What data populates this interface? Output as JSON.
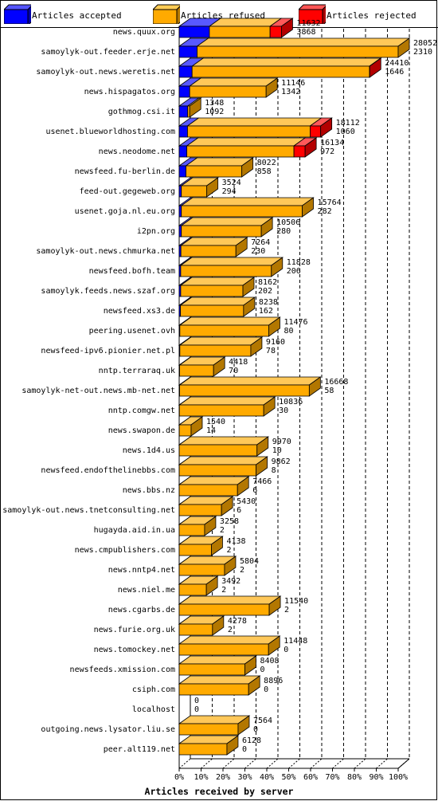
{
  "legend": [
    {
      "label": "Articles accepted",
      "color": "#0000ff"
    },
    {
      "label": "Articles refused",
      "color": "#ffaa00"
    },
    {
      "label": "Articles rejected",
      "color": "#ff0000"
    }
  ],
  "chart_data": {
    "type": "bar",
    "orientation": "horizontal",
    "stacked": true,
    "xlabel": "Articles received by server",
    "xlim": [
      0,
      100
    ],
    "x_unit": "percent",
    "x_ticks": [
      "0%",
      "10%",
      "20%",
      "30%",
      "40%",
      "50%",
      "60%",
      "70%",
      "80%",
      "90%",
      "100%"
    ],
    "grid": true,
    "colors": {
      "accepted": "#0000ff",
      "refused": "#ffaa00",
      "rejected": "#ff0000"
    },
    "rows": [
      {
        "server": "news.quux.org",
        "total": "11632",
        "accepted_label": "3868",
        "accepted_pct": 13.8,
        "refused_pct": 27.7,
        "rejected_pct": 5.2
      },
      {
        "server": "samoylyk-out.feeder.erje.net",
        "total": "28052",
        "accepted_label": "2310",
        "accepted_pct": 8.2,
        "refused_pct": 91.8,
        "rejected_pct": 0.0
      },
      {
        "server": "samoylyk-out.news.weretis.net",
        "total": "24410",
        "accepted_label": "1646",
        "accepted_pct": 5.9,
        "refused_pct": 81.0,
        "rejected_pct": 0.1
      },
      {
        "server": "news.hispagatos.org",
        "total": "11146",
        "accepted_label": "1342",
        "accepted_pct": 4.8,
        "refused_pct": 34.9,
        "rejected_pct": 0.0
      },
      {
        "server": "gothmog.csi.it",
        "total": "1348",
        "accepted_label": "1092",
        "accepted_pct": 3.9,
        "refused_pct": 0.9,
        "rejected_pct": 0.0
      },
      {
        "server": "usenet.blueworldhosting.com",
        "total": "18112",
        "accepted_label": "1060",
        "accepted_pct": 3.8,
        "refused_pct": 56.0,
        "rejected_pct": 4.8
      },
      {
        "server": "news.neodome.net",
        "total": "16134",
        "accepted_label": "972",
        "accepted_pct": 3.5,
        "refused_pct": 48.9,
        "rejected_pct": 5.1
      },
      {
        "server": "newsfeed.fu-berlin.de",
        "total": "8022",
        "accepted_label": "858",
        "accepted_pct": 3.1,
        "refused_pct": 25.5,
        "rejected_pct": 0.0
      },
      {
        "server": "feed-out.gegeweb.org",
        "total": "3524",
        "accepted_label": "294",
        "accepted_pct": 1.0,
        "refused_pct": 11.6,
        "rejected_pct": 0.0
      },
      {
        "server": "usenet.goja.nl.eu.org",
        "total": "15764",
        "accepted_label": "282",
        "accepted_pct": 1.0,
        "refused_pct": 55.2,
        "rejected_pct": 0.0
      },
      {
        "server": "i2pn.org",
        "total": "10506",
        "accepted_label": "280",
        "accepted_pct": 1.0,
        "refused_pct": 36.5,
        "rejected_pct": 0.0
      },
      {
        "server": "samoylyk-out.news.chmurka.net",
        "total": "7264",
        "accepted_label": "230",
        "accepted_pct": 0.8,
        "refused_pct": 25.1,
        "rejected_pct": 0.0
      },
      {
        "server": "newsfeed.bofh.team",
        "total": "11828",
        "accepted_label": "206",
        "accepted_pct": 0.7,
        "refused_pct": 41.4,
        "rejected_pct": 0.0
      },
      {
        "server": "samoylyk.feeds.news.szaf.org",
        "total": "8162",
        "accepted_label": "202",
        "accepted_pct": 0.7,
        "refused_pct": 28.4,
        "rejected_pct": 0.0
      },
      {
        "server": "newsfeed.xs3.de",
        "total": "8238",
        "accepted_label": "162",
        "accepted_pct": 0.6,
        "refused_pct": 28.8,
        "rejected_pct": 0.0
      },
      {
        "server": "peering.usenet.ovh",
        "total": "11476",
        "accepted_label": "80",
        "accepted_pct": 0.3,
        "refused_pct": 40.6,
        "rejected_pct": 0.0
      },
      {
        "server": "newsfeed-ipv6.pionier.net.pl",
        "total": "9160",
        "accepted_label": "78",
        "accepted_pct": 0.3,
        "refused_pct": 32.4,
        "rejected_pct": 0.0
      },
      {
        "server": "nntp.terraraq.uk",
        "total": "4418",
        "accepted_label": "70",
        "accepted_pct": 0.2,
        "refused_pct": 15.5,
        "rejected_pct": 0.0
      },
      {
        "server": "samoylyk-net-out.news.mb-net.net",
        "total": "16668",
        "accepted_label": "58",
        "accepted_pct": 0.2,
        "refused_pct": 59.2,
        "rejected_pct": 0.0
      },
      {
        "server": "nntp.comgw.net",
        "total": "10836",
        "accepted_label": "30",
        "accepted_pct": 0.1,
        "refused_pct": 38.5,
        "rejected_pct": 0.0
      },
      {
        "server": "news.swapon.de",
        "total": "1540",
        "accepted_label": "14",
        "accepted_pct": 0.05,
        "refused_pct": 5.4,
        "rejected_pct": 0.0
      },
      {
        "server": "news.1d4.us",
        "total": "9970",
        "accepted_label": "10",
        "accepted_pct": 0.04,
        "refused_pct": 35.5,
        "rejected_pct": 0.0
      },
      {
        "server": "newsfeed.endofthelinebbs.com",
        "total": "9862",
        "accepted_label": "8",
        "accepted_pct": 0.03,
        "refused_pct": 35.1,
        "rejected_pct": 0.0
      },
      {
        "server": "news.bbs.nz",
        "total": "7466",
        "accepted_label": "6",
        "accepted_pct": 0.02,
        "refused_pct": 26.6,
        "rejected_pct": 0.0
      },
      {
        "server": "samoylyk-out.news.tnetconsulting.net",
        "total": "5430",
        "accepted_label": "6",
        "accepted_pct": 0.02,
        "refused_pct": 19.3,
        "rejected_pct": 0.0
      },
      {
        "server": "hugayda.aid.in.ua",
        "total": "3258",
        "accepted_label": "2",
        "accepted_pct": 0.01,
        "refused_pct": 11.6,
        "rejected_pct": 0.0
      },
      {
        "server": "news.cmpublishers.com",
        "total": "4138",
        "accepted_label": "2",
        "accepted_pct": 0.01,
        "refused_pct": 14.7,
        "rejected_pct": 0.0
      },
      {
        "server": "news.nntp4.net",
        "total": "5804",
        "accepted_label": "2",
        "accepted_pct": 0.01,
        "refused_pct": 20.7,
        "rejected_pct": 0.0
      },
      {
        "server": "news.niel.me",
        "total": "3492",
        "accepted_label": "2",
        "accepted_pct": 0.01,
        "refused_pct": 12.4,
        "rejected_pct": 0.0
      },
      {
        "server": "news.cgarbs.de",
        "total": "11540",
        "accepted_label": "2",
        "accepted_pct": 0.01,
        "refused_pct": 41.1,
        "rejected_pct": 0.0
      },
      {
        "server": "news.furie.org.uk",
        "total": "4278",
        "accepted_label": "2",
        "accepted_pct": 0.01,
        "refused_pct": 15.2,
        "rejected_pct": 0.0
      },
      {
        "server": "news.tomockey.net",
        "total": "11448",
        "accepted_label": "0",
        "accepted_pct": 0.0,
        "refused_pct": 40.8,
        "rejected_pct": 0.0
      },
      {
        "server": "newsfeeds.xmission.com",
        "total": "8408",
        "accepted_label": "0",
        "accepted_pct": 0.0,
        "refused_pct": 30.0,
        "rejected_pct": 0.0
      },
      {
        "server": "csiph.com",
        "total": "8896",
        "accepted_label": "0",
        "accepted_pct": 0.0,
        "refused_pct": 31.7,
        "rejected_pct": 0.0
      },
      {
        "server": "localhost",
        "total": "0",
        "accepted_label": "0",
        "accepted_pct": 0.0,
        "refused_pct": 0.0,
        "rejected_pct": 0.0
      },
      {
        "server": "outgoing.news.lysator.liu.se",
        "total": "7564",
        "accepted_label": "0",
        "accepted_pct": 0.0,
        "refused_pct": 26.9,
        "rejected_pct": 0.0
      },
      {
        "server": "peer.alt119.net",
        "total": "6128",
        "accepted_label": "0",
        "accepted_pct": 0.0,
        "refused_pct": 21.8,
        "rejected_pct": 0.0
      }
    ]
  }
}
